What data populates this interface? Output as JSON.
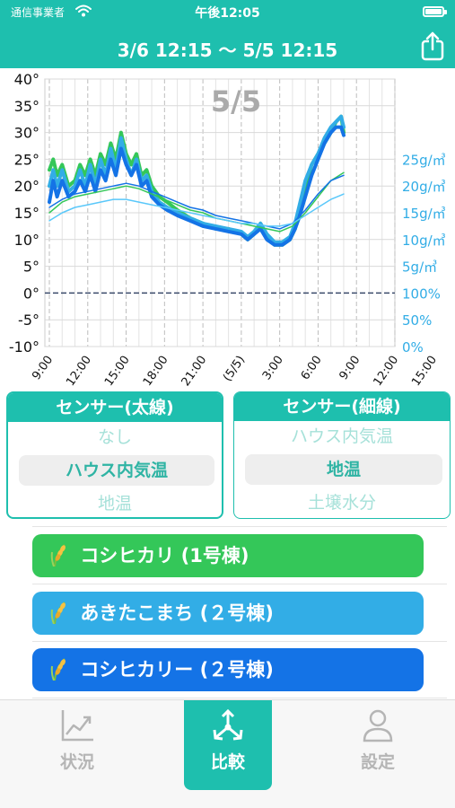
{
  "status_bar": {
    "carrier": "通信事業者",
    "time": "午後12:05"
  },
  "header": {
    "title": "3/6 12:15 〜 5/5 12:15",
    "share_icon": "share-icon"
  },
  "chart_data": {
    "type": "line",
    "overlay_label": "5/5",
    "x_ticks": [
      "9:00",
      "12:00",
      "15:00",
      "18:00",
      "21:00",
      "(5/5)",
      "3:00",
      "6:00",
      "9:00",
      "12:00",
      "15:00"
    ],
    "y_left_ticks": [
      "40°",
      "35°",
      "30°",
      "25°",
      "20°",
      "15°",
      "10°",
      "5°",
      "0°",
      "-5°",
      "-10°"
    ],
    "y_left_range": [
      -10,
      40
    ],
    "y_right_ticks": [
      "25g/㎥",
      "20g/㎥",
      "15g/㎥",
      "10g/㎥",
      "5g/㎥",
      "100%",
      "50%",
      "0%"
    ],
    "x_hours": [
      0,
      27
    ],
    "series": [
      {
        "color": "#34c759",
        "width": 4,
        "points": [
          [
            0,
            23
          ],
          [
            0.3,
            25
          ],
          [
            0.6,
            22
          ],
          [
            1,
            24
          ],
          [
            1.5,
            20
          ],
          [
            2,
            21
          ],
          [
            2.4,
            24
          ],
          [
            2.8,
            22
          ],
          [
            3.2,
            25
          ],
          [
            3.6,
            22
          ],
          [
            4,
            26
          ],
          [
            4.4,
            24
          ],
          [
            4.8,
            28
          ],
          [
            5.2,
            25
          ],
          [
            5.6,
            30
          ],
          [
            6,
            26
          ],
          [
            6.4,
            24
          ],
          [
            6.8,
            26
          ],
          [
            7.2,
            22
          ],
          [
            7.6,
            23
          ],
          [
            8,
            20
          ],
          [
            8.6,
            18
          ],
          [
            9.2,
            17
          ],
          [
            10,
            15.5
          ],
          [
            11,
            14
          ],
          [
            12,
            13
          ],
          [
            13,
            12
          ],
          [
            14,
            12
          ],
          [
            15,
            11
          ],
          [
            15.5,
            10
          ],
          [
            16,
            11
          ],
          [
            16.5,
            13
          ],
          [
            17,
            10.5
          ],
          [
            17.6,
            9
          ],
          [
            18.2,
            9
          ],
          [
            18.8,
            10
          ],
          [
            19.2,
            12
          ],
          [
            19.5,
            15
          ],
          [
            20,
            20
          ],
          [
            20.5,
            24
          ],
          [
            21,
            26
          ],
          [
            21.5,
            28
          ],
          [
            22,
            30
          ],
          [
            22.4,
            32
          ],
          [
            22.8,
            33
          ],
          [
            23,
            30
          ]
        ]
      },
      {
        "color": "#32ade6",
        "width": 4,
        "points": [
          [
            0,
            20
          ],
          [
            0.3,
            23
          ],
          [
            0.6,
            20
          ],
          [
            1,
            23
          ],
          [
            1.5,
            19
          ],
          [
            2,
            20
          ],
          [
            2.4,
            23
          ],
          [
            2.8,
            20
          ],
          [
            3.2,
            24
          ],
          [
            3.6,
            20
          ],
          [
            4,
            25
          ],
          [
            4.4,
            22
          ],
          [
            4.8,
            27
          ],
          [
            5.2,
            23
          ],
          [
            5.6,
            29
          ],
          [
            6,
            25
          ],
          [
            6.4,
            22
          ],
          [
            6.8,
            25
          ],
          [
            7.2,
            21
          ],
          [
            7.6,
            22
          ],
          [
            8,
            19
          ],
          [
            8.6,
            17
          ],
          [
            9.2,
            16
          ],
          [
            10,
            15
          ],
          [
            11,
            14
          ],
          [
            12,
            13
          ],
          [
            13,
            12.5
          ],
          [
            14,
            12
          ],
          [
            15,
            11.5
          ],
          [
            15.5,
            10.5
          ],
          [
            16,
            11.5
          ],
          [
            16.5,
            13
          ],
          [
            17,
            11
          ],
          [
            17.6,
            9.5
          ],
          [
            18.2,
            9.5
          ],
          [
            18.8,
            10.5
          ],
          [
            19.2,
            13
          ],
          [
            19.5,
            16
          ],
          [
            20,
            21
          ],
          [
            20.5,
            24
          ],
          [
            21,
            26
          ],
          [
            21.5,
            29
          ],
          [
            22,
            31
          ],
          [
            22.4,
            32
          ],
          [
            22.8,
            33
          ],
          [
            23,
            31
          ]
        ]
      },
      {
        "color": "#1473e6",
        "width": 4,
        "points": [
          [
            0,
            17
          ],
          [
            0.3,
            21
          ],
          [
            0.6,
            18
          ],
          [
            1,
            21
          ],
          [
            1.5,
            18
          ],
          [
            2,
            19
          ],
          [
            2.4,
            21
          ],
          [
            2.8,
            19
          ],
          [
            3.2,
            22
          ],
          [
            3.6,
            19
          ],
          [
            4,
            23
          ],
          [
            4.4,
            21
          ],
          [
            4.8,
            25
          ],
          [
            5.2,
            22
          ],
          [
            5.6,
            27
          ],
          [
            6,
            24
          ],
          [
            6.4,
            22
          ],
          [
            6.8,
            24
          ],
          [
            7.2,
            20
          ],
          [
            7.6,
            21
          ],
          [
            8,
            18
          ],
          [
            8.6,
            16.5
          ],
          [
            9.2,
            15.5
          ],
          [
            10,
            14.5
          ],
          [
            11,
            13.5
          ],
          [
            12,
            12.5
          ],
          [
            13,
            12
          ],
          [
            14,
            11.5
          ],
          [
            15,
            11
          ],
          [
            15.5,
            10
          ],
          [
            16,
            11
          ],
          [
            16.5,
            12
          ],
          [
            17,
            10
          ],
          [
            17.6,
            9
          ],
          [
            18.2,
            9
          ],
          [
            18.8,
            10
          ],
          [
            19.2,
            12
          ],
          [
            19.5,
            14
          ],
          [
            20,
            18
          ],
          [
            20.5,
            22
          ],
          [
            21,
            25
          ],
          [
            21.5,
            28
          ],
          [
            22,
            30
          ],
          [
            22.4,
            31
          ],
          [
            22.8,
            31
          ],
          [
            23,
            29.5
          ]
        ]
      },
      {
        "color": "#34c759",
        "width": 1.5,
        "points": [
          [
            0,
            15
          ],
          [
            1,
            17
          ],
          [
            2,
            18
          ],
          [
            3,
            18.5
          ],
          [
            4,
            19
          ],
          [
            5,
            19.5
          ],
          [
            6,
            20
          ],
          [
            7,
            19.5
          ],
          [
            8,
            18.5
          ],
          [
            9,
            17.5
          ],
          [
            10,
            16.5
          ],
          [
            11,
            15.5
          ],
          [
            12,
            15
          ],
          [
            13,
            14
          ],
          [
            14,
            13.5
          ],
          [
            15,
            13
          ],
          [
            16,
            12.5
          ],
          [
            17,
            12
          ],
          [
            18,
            11.5
          ],
          [
            19,
            12.5
          ],
          [
            20,
            15
          ],
          [
            21,
            18
          ],
          [
            22,
            21
          ],
          [
            23,
            22.5
          ]
        ]
      },
      {
        "color": "#1473e6",
        "width": 1.5,
        "points": [
          [
            0,
            16
          ],
          [
            1,
            17.5
          ],
          [
            2,
            18.5
          ],
          [
            3,
            19
          ],
          [
            4,
            19.5
          ],
          [
            5,
            20
          ],
          [
            6,
            20.5
          ],
          [
            7,
            20
          ],
          [
            8,
            19
          ],
          [
            9,
            18
          ],
          [
            10,
            17
          ],
          [
            11,
            16
          ],
          [
            12,
            15.5
          ],
          [
            13,
            14.5
          ],
          [
            14,
            14
          ],
          [
            15,
            13.5
          ],
          [
            16,
            13
          ],
          [
            17,
            12.5
          ],
          [
            18,
            12
          ],
          [
            19,
            13
          ],
          [
            20,
            15.5
          ],
          [
            21,
            18.5
          ],
          [
            22,
            21
          ],
          [
            23,
            22
          ]
        ]
      },
      {
        "color": "#5ac8fa",
        "width": 1.5,
        "points": [
          [
            0,
            13.5
          ],
          [
            1,
            15
          ],
          [
            2,
            16
          ],
          [
            3,
            16.5
          ],
          [
            4,
            17
          ],
          [
            5,
            17.5
          ],
          [
            6,
            17.5
          ],
          [
            7,
            17
          ],
          [
            8,
            16.5
          ],
          [
            9,
            16
          ],
          [
            10,
            15.5
          ],
          [
            11,
            15
          ],
          [
            12,
            14.5
          ],
          [
            13,
            14
          ],
          [
            14,
            13.5
          ],
          [
            15,
            13
          ],
          [
            16,
            13
          ],
          [
            17,
            12.5
          ],
          [
            18,
            12.5
          ],
          [
            19,
            13
          ],
          [
            20,
            14.5
          ],
          [
            21,
            16
          ],
          [
            22,
            17.5
          ],
          [
            23,
            18.5
          ]
        ]
      }
    ]
  },
  "panels": {
    "thick": {
      "title": "センサー(太線)",
      "items": [
        "なし",
        "ハウス内気温",
        "地温"
      ],
      "selected": 1
    },
    "thin": {
      "title": "センサー(細線)",
      "items": [
        "ハウス内気温",
        "地温",
        "土壌水分"
      ],
      "selected": 1
    }
  },
  "houses": [
    {
      "label": "コシヒカリ (1号棟)",
      "color": "#34c759"
    },
    {
      "label": "あきたこまち (２号棟)",
      "color": "#32ade6"
    },
    {
      "label": "コシヒカリー (２号棟)",
      "color": "#1473e6"
    }
  ],
  "tabs": [
    {
      "label": "状況",
      "icon": "chart-icon"
    },
    {
      "label": "比較",
      "icon": "compare-icon"
    },
    {
      "label": "設定",
      "icon": "person-icon"
    }
  ],
  "active_tab": 1
}
